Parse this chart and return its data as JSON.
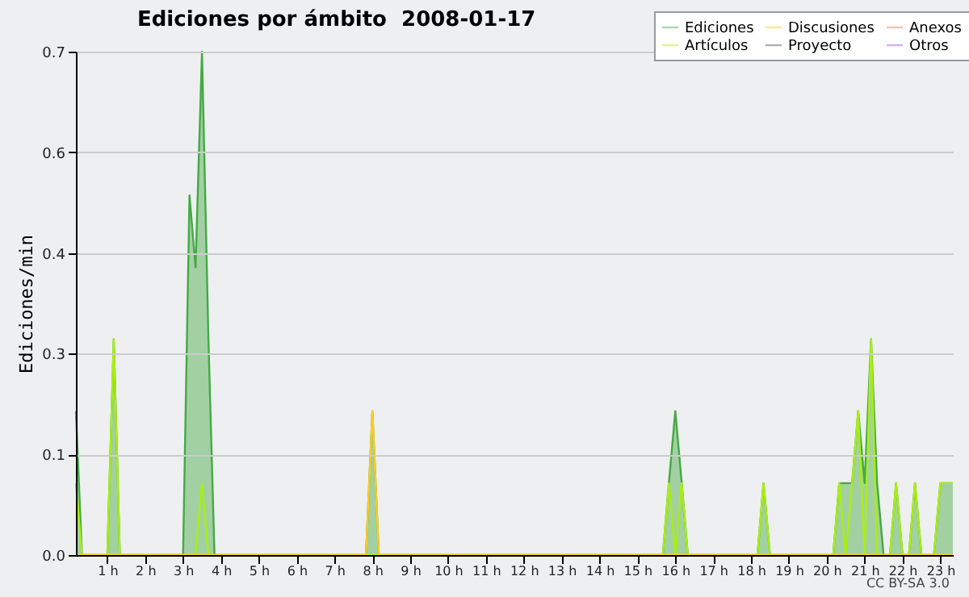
{
  "chart_data": {
    "type": "line",
    "title": "Ediciones por ámbito  2008-01-17",
    "ylabel": "Ediciones/min",
    "xlim": [
      0.17,
      23.33
    ],
    "ylim": [
      0,
      0.7
    ],
    "xticks": [
      {
        "value": 1,
        "label": "1 h"
      },
      {
        "value": 2,
        "label": "2 h"
      },
      {
        "value": 3,
        "label": "3 h"
      },
      {
        "value": 4,
        "label": "4 h"
      },
      {
        "value": 5,
        "label": "5 h"
      },
      {
        "value": 6,
        "label": "6 h"
      },
      {
        "value": 7,
        "label": "7 h"
      },
      {
        "value": 8,
        "label": "8 h"
      },
      {
        "value": 9,
        "label": "9 h"
      },
      {
        "value": 10,
        "label": "10 h"
      },
      {
        "value": 11,
        "label": "11 h"
      },
      {
        "value": 12,
        "label": "12 h"
      },
      {
        "value": 13,
        "label": "13 h"
      },
      {
        "value": 14,
        "label": "14 h"
      },
      {
        "value": 15,
        "label": "15 h"
      },
      {
        "value": 16,
        "label": "16 h"
      },
      {
        "value": 17,
        "label": "17 h"
      },
      {
        "value": 18,
        "label": "18 h"
      },
      {
        "value": 19,
        "label": "19 h"
      },
      {
        "value": 20,
        "label": "20 h"
      },
      {
        "value": 21,
        "label": "21 h"
      },
      {
        "value": 22,
        "label": "22 h"
      },
      {
        "value": 23,
        "label": "23 h"
      }
    ],
    "yticks": [
      {
        "value": 0,
        "label": "0.0"
      },
      {
        "value": 0.14,
        "label": "0.1"
      },
      {
        "value": 0.28,
        "label": "0.3"
      },
      {
        "value": 0.42,
        "label": "0.4"
      },
      {
        "value": 0.56,
        "label": "0.6"
      },
      0.7
    ],
    "grid": "y",
    "legend": "top right",
    "marker": "none",
    "line_style": "solid",
    "annotations": [
      "CC BY-SA 3.0"
    ],
    "series": [
      {
        "name": "Ediciones",
        "type": "area",
        "color": "#44aa44",
        "x": [
          0.17,
          0.33,
          1.0,
          1.17,
          1.33,
          3.0,
          3.17,
          3.33,
          3.5,
          3.67,
          3.83,
          7.83,
          8.0,
          8.17,
          15.67,
          15.83,
          16.0,
          16.17,
          16.33,
          18.17,
          18.33,
          18.5,
          20.17,
          20.33,
          20.5,
          20.67,
          20.83,
          21.0,
          21.17,
          21.33,
          21.5,
          21.67,
          21.83,
          22.0,
          22.17,
          22.33,
          22.5,
          22.83,
          23.0,
          23.17,
          23.33
        ],
        "values": [
          0.2,
          0,
          0,
          0.3,
          0,
          0,
          0.5,
          0.4,
          0.7,
          0.3,
          0,
          0,
          0.2,
          0,
          0,
          0.1,
          0.2,
          0.1,
          0,
          0,
          0.1,
          0,
          0,
          0.1,
          0.1,
          0.1,
          0.2,
          0.1,
          0.3,
          0.1,
          0,
          0,
          0.1,
          0,
          0,
          0.1,
          0,
          0,
          0.1,
          0.1,
          0.1
        ]
      },
      {
        "name": "Artículos",
        "color": "#aaee11",
        "x": [
          0.17,
          0.33,
          1.0,
          1.17,
          1.33,
          3.33,
          3.5,
          3.67,
          15.67,
          15.83,
          16.0,
          16.17,
          16.33,
          18.17,
          18.33,
          18.5,
          20.17,
          20.33,
          20.5,
          20.67,
          20.83,
          21.0,
          21.17,
          21.33,
          21.5,
          21.67,
          21.83,
          22.0,
          22.17,
          22.33,
          22.5,
          22.83,
          23.0,
          23.17,
          23.33
        ],
        "values": [
          0.1,
          0,
          0,
          0.3,
          0,
          0,
          0.1,
          0,
          0,
          0.1,
          0,
          0.1,
          0,
          0,
          0.1,
          0,
          0,
          0.1,
          0,
          0.1,
          0.2,
          0,
          0.3,
          0,
          0,
          0,
          0.1,
          0,
          0,
          0.1,
          0,
          0,
          0.1,
          0.1,
          0.1
        ]
      },
      {
        "name": "Discusiones",
        "color": "#ffcc22",
        "x": [
          0.17,
          7.83,
          8.0,
          8.17,
          23.33
        ],
        "values": [
          0,
          0,
          0.2,
          0,
          0
        ]
      },
      {
        "name": "Proyecto",
        "color": "#555555"
      },
      {
        "name": "Anexos",
        "color": "#ff7744"
      },
      {
        "name": "Otros",
        "color": "#9955ff"
      }
    ]
  }
}
